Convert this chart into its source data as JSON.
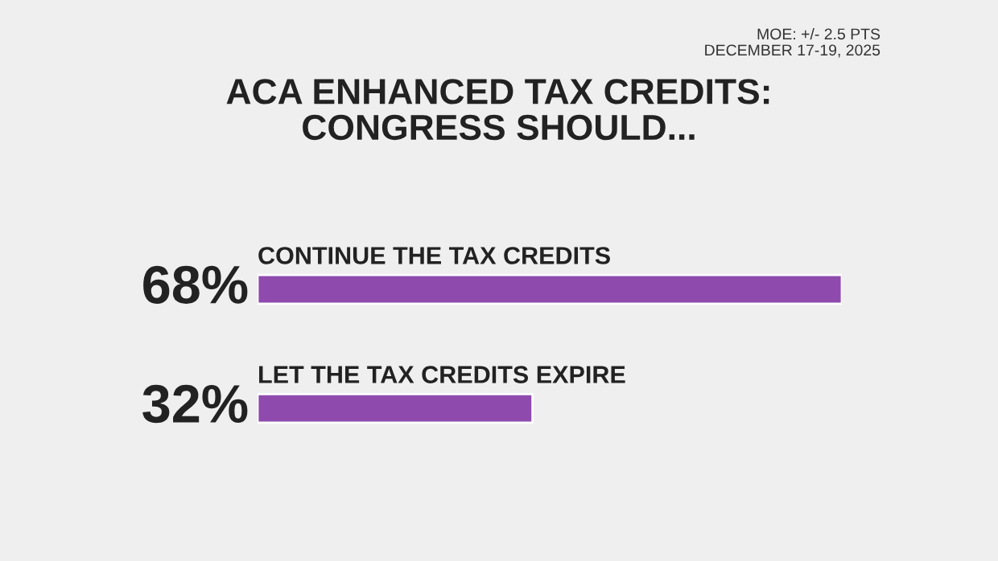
{
  "chart_data": {
    "type": "bar",
    "orientation": "horizontal",
    "title": "ACA ENHANCED TAX CREDITS:\nCONGRESS SHOULD...",
    "categories": [
      "CONTINUE THE TAX CREDITS",
      "LET THE TAX CREDITS EXPIRE"
    ],
    "values": [
      68,
      32
    ],
    "value_labels": [
      "68%",
      "32%"
    ],
    "color": "#8e4aad",
    "annotations": [
      "MOE: +/- 2.5 PTS",
      "DECEMBER 17-19, 2025"
    ]
  }
}
